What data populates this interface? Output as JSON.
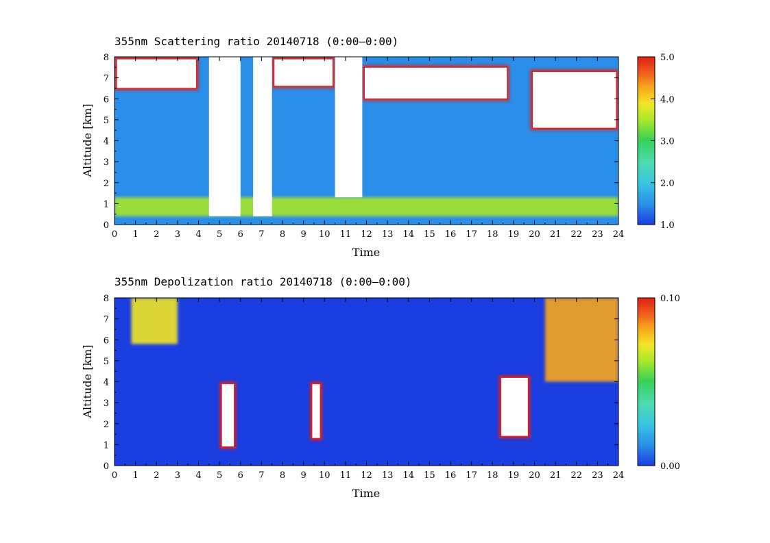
{
  "chart_data": [
    {
      "type": "heatmap",
      "title": "355nm Scattering ratio  20140718 (0:00–0:00)",
      "xlabel": "Time",
      "ylabel": "Altitude [km]",
      "xlim": [
        0,
        24
      ],
      "ylim": [
        0,
        8
      ],
      "x_ticks": [
        "0",
        "1",
        "2",
        "3",
        "4",
        "5",
        "6",
        "7",
        "8",
        "9",
        "10",
        "11",
        "12",
        "13",
        "14",
        "15",
        "16",
        "17",
        "18",
        "19",
        "20",
        "21",
        "22",
        "23",
        "24"
      ],
      "y_ticks": [
        "0",
        "1",
        "2",
        "3",
        "4",
        "5",
        "6",
        "7",
        "8"
      ],
      "colorbar": {
        "min": 1.0,
        "max": 5.0,
        "labels": [
          "5.0",
          "4.0",
          "3.0",
          "2.0",
          "1.0"
        ],
        "values": [
          5.0,
          4.0,
          3.0,
          2.0,
          1.0
        ]
      },
      "colormap": [
        "#1a3de0",
        "#2a8ee8",
        "#39c6e0",
        "#4fdcb0",
        "#35d05a",
        "#a6e52c",
        "#f2e627",
        "#f7a51c",
        "#ee5a1a",
        "#e0201a"
      ],
      "no_data_color": "#ffffff",
      "features": [
        {
          "kind": "boundary_layer",
          "x_range": [
            0,
            24
          ],
          "y_range": [
            0.4,
            1.3
          ],
          "value": 3.2
        },
        {
          "kind": "cloud_layer",
          "x_range": [
            0,
            4
          ],
          "y_range": [
            6.4,
            8
          ],
          "value": 5.0
        },
        {
          "kind": "cloud_layer",
          "x_range": [
            7.5,
            10.5
          ],
          "y_range": [
            6.5,
            8
          ],
          "value": 5.0
        },
        {
          "kind": "cloud_layer",
          "x_range": [
            11.8,
            18.8
          ],
          "y_range": [
            5.9,
            7.6
          ],
          "value": 5.0
        },
        {
          "kind": "cloud_layer",
          "x_range": [
            19.8,
            24
          ],
          "y_range": [
            4.5,
            7.4
          ],
          "value": 5.0
        },
        {
          "kind": "no_data_gap",
          "x_range": [
            4.5,
            6.0
          ],
          "y_range": [
            0.4,
            8
          ]
        },
        {
          "kind": "no_data_gap",
          "x_range": [
            6.6,
            7.5
          ],
          "y_range": [
            0.4,
            8
          ]
        },
        {
          "kind": "no_data_gap",
          "x_range": [
            10.5,
            11.8
          ],
          "y_range": [
            1.3,
            8
          ]
        }
      ]
    },
    {
      "type": "heatmap",
      "title": "355nm Depolization ratio  20140718 (0:00–0:00)",
      "xlabel": "Time",
      "ylabel": "Altitude [km]",
      "xlim": [
        0,
        24
      ],
      "ylim": [
        0,
        8
      ],
      "x_ticks": [
        "0",
        "1",
        "2",
        "3",
        "4",
        "5",
        "6",
        "7",
        "8",
        "9",
        "10",
        "11",
        "12",
        "13",
        "14",
        "15",
        "16",
        "17",
        "18",
        "19",
        "20",
        "21",
        "22",
        "23",
        "24"
      ],
      "y_ticks": [
        "0",
        "1",
        "2",
        "3",
        "4",
        "5",
        "6",
        "7",
        "8"
      ],
      "colorbar": {
        "min": 0.0,
        "max": 0.1,
        "labels": [
          "0.10",
          "0.00"
        ],
        "values": [
          0.1,
          0.0
        ]
      },
      "colormap": [
        "#1a3de0",
        "#2a8ee8",
        "#39c6e0",
        "#4fdcb0",
        "#35d05a",
        "#a6e52c",
        "#f2e627",
        "#f7a51c",
        "#ee5a1a",
        "#e0201a"
      ],
      "background_value": 0.01,
      "features": [
        {
          "kind": "dust_plume",
          "x_range": [
            5.0,
            5.8
          ],
          "y_range": [
            0.8,
            4.0
          ],
          "value": 0.1
        },
        {
          "kind": "dust_plume",
          "x_range": [
            9.3,
            9.9
          ],
          "y_range": [
            1.2,
            4.0
          ],
          "value": 0.1
        },
        {
          "kind": "dust_plume",
          "x_range": [
            18.3,
            19.8
          ],
          "y_range": [
            1.3,
            4.3
          ],
          "value": 0.1
        },
        {
          "kind": "aerosol_layer",
          "x_range": [
            20.5,
            24
          ],
          "y_range": [
            4.0,
            8.0
          ],
          "value": 0.07
        },
        {
          "kind": "aerosol_layer",
          "x_range": [
            0.8,
            3.0
          ],
          "y_range": [
            5.8,
            8.0
          ],
          "value": 0.06
        }
      ]
    }
  ]
}
